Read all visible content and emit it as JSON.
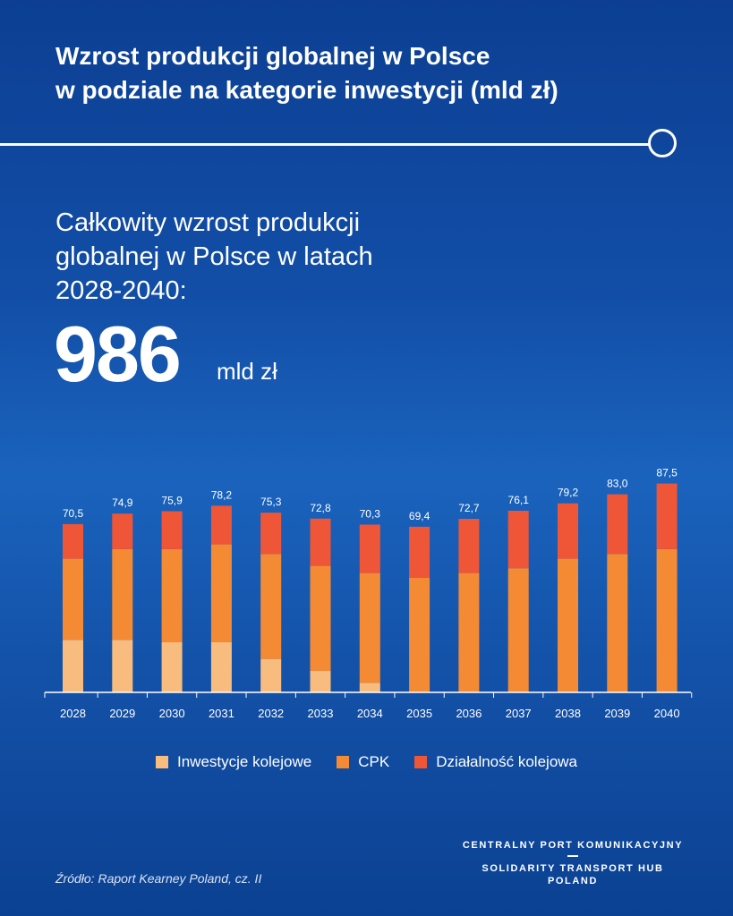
{
  "header": {
    "title_line1": "Wzrost produkcji globalnej w Polsce",
    "title_line2": "w podziale na kategorie inwestycji (mld zł)"
  },
  "summary": {
    "line1": "Całkowity wzrost produkcji",
    "line2": "globalnej w Polsce w latach",
    "line3": "2028-2040:",
    "value": "986",
    "unit": "mld zł"
  },
  "chart_data": {
    "type": "bar",
    "stacked": true,
    "categories": [
      "2028",
      "2029",
      "2030",
      "2031",
      "2032",
      "2033",
      "2034",
      "2035",
      "2036",
      "2037",
      "2038",
      "2039",
      "2040"
    ],
    "totals_labels": [
      "70,5",
      "74,9",
      "75,9",
      "78,2",
      "75,3",
      "72,8",
      "70,3",
      "69,4",
      "72,7",
      "76,1",
      "79,2",
      "83,0",
      "87,5"
    ],
    "series": [
      {
        "name": "Inwestycje kolejowe",
        "color": "#f8bd7e",
        "values": [
          22,
          22,
          21,
          21,
          14,
          9,
          4,
          0,
          0,
          0,
          0,
          0,
          0
        ]
      },
      {
        "name": "CPK",
        "color": "#f58a35",
        "values": [
          34,
          38,
          39,
          41,
          44,
          44,
          46,
          48,
          50,
          52,
          56,
          58,
          60
        ]
      },
      {
        "name": "Działalność kolejowa",
        "color": "#ee5637",
        "values": [
          14.5,
          14.9,
          15.9,
          16.2,
          17.3,
          19.8,
          20.3,
          21.4,
          22.7,
          24.1,
          23.2,
          25.0,
          27.5
        ]
      }
    ],
    "grid": false,
    "legend_position": "bottom"
  },
  "source": "Źródło: Raport Kearney Poland, cz. II",
  "brand": {
    "line1": "CENTRALNY PORT KOMUNIKACYJNY",
    "line2": "SOLIDARITY TRANSPORT HUB",
    "line3": "POLAND"
  }
}
